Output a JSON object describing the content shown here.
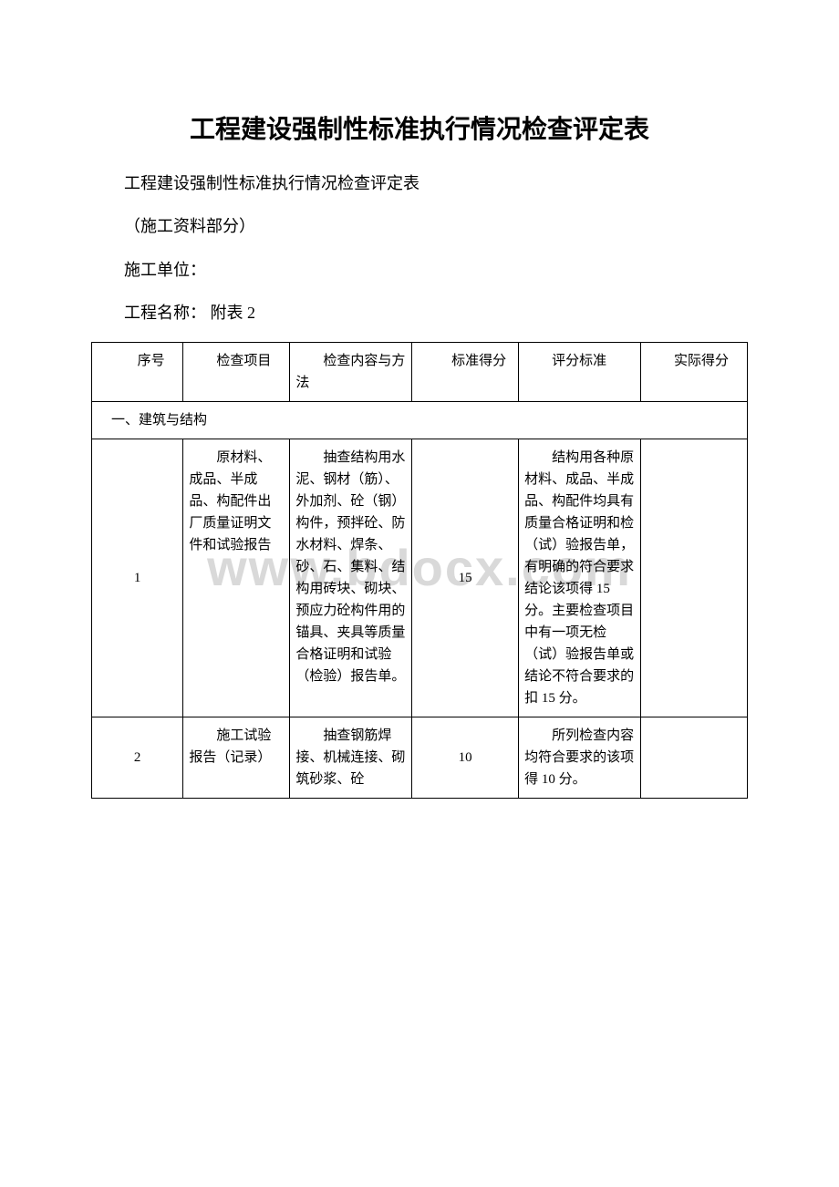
{
  "watermark": "www.bdocx.com",
  "title": "工程建设强制性标准执行情况检查评定表",
  "subtitle": "工程建设强制性标准执行情况检查评定表",
  "section_label": "（施工资料部分）",
  "unit_label": "施工单位：",
  "project_label": "工程名称： 附表 2",
  "table": {
    "headers": {
      "col1": "序号",
      "col2": "检查项目",
      "col3": "检查内容与方法",
      "col4": "标准得分",
      "col5": "评分标准",
      "col6": "实际得分"
    },
    "section1": "一、建筑与结构",
    "rows": [
      {
        "num": "1",
        "item": "原材料、成品、半成品、构配件出厂质量证明文件和试验报告",
        "method": "抽查结构用水泥、钢材（筋）、外加剂、砼（钢）构件，预拌砼、防水材料、焊条、砂、石、集料、结构用砖块、砌块、预应力砼构件用的锚具、夹具等质量合格证明和试验（检验）报告单。",
        "score": "15",
        "criteria": "结构用各种原材料、成品、半成品、构配件均具有质量合格证明和检（试）验报告单，有明确的符合要求结论该项得 15 分。主要检查项目中有一项无检（试）验报告单或结论不符合要求的扣 15 分。",
        "actual": ""
      },
      {
        "num": "2",
        "item": "施工试验报告（记录）",
        "method": "抽查钢筋焊接、机械连接、砌筑砂浆、砼",
        "score": "10",
        "criteria": "所列检查内容均符合要求的该项得 10 分。",
        "actual": ""
      }
    ]
  },
  "colors": {
    "text": "#000000",
    "border": "#000000",
    "background": "#ffffff",
    "watermark": "#d9d9d9"
  }
}
